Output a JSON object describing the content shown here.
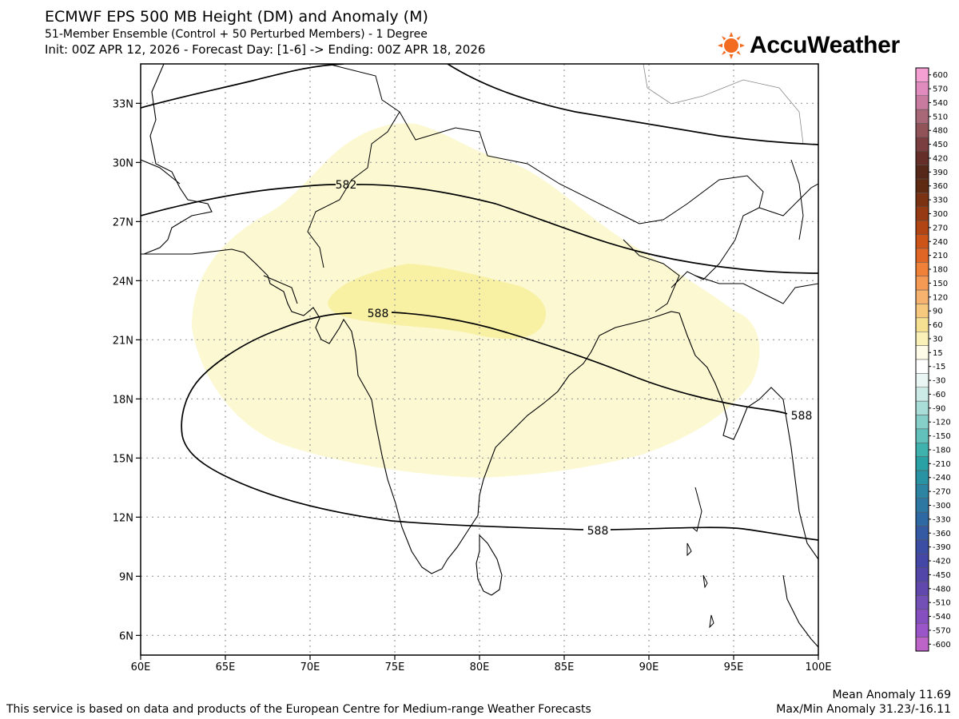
{
  "header": {
    "title": "ECMWF EPS 500 MB Height (DM) and Anomaly (M)",
    "subtitle": "51-Member Ensemble (Control + 50 Perturbed Members) - 1 Degree",
    "init_line": "Init: 00Z APR 12, 2026 - Forecast Day: [1-6] -> Ending: 00Z APR 18, 2026"
  },
  "logo": {
    "text": "AccuWeather",
    "icon": "sun-icon",
    "color": "#f26b21"
  },
  "map": {
    "lon_range": [
      60,
      100
    ],
    "lat_range": [
      5,
      35
    ],
    "lon_ticks": [
      "60E",
      "65E",
      "70E",
      "75E",
      "80E",
      "85E",
      "90E",
      "95E",
      "100E"
    ],
    "lat_ticks": [
      "33N",
      "30N",
      "27N",
      "24N",
      "21N",
      "18N",
      "15N",
      "12N",
      "9N",
      "6N"
    ],
    "grid": "dotted",
    "contour_labels": [
      "582",
      "588",
      "588",
      "588"
    ],
    "anomaly_fill_colors": {
      "15_to_30": "#fbf8d2",
      "30_to_60": "#f8f1a4"
    }
  },
  "colorbar": {
    "labels": [
      "600",
      "570",
      "540",
      "510",
      "480",
      "450",
      "420",
      "390",
      "360",
      "330",
      "300",
      "270",
      "240",
      "210",
      "180",
      "150",
      "120",
      "90",
      "60",
      "30",
      "15",
      "-15",
      "-30",
      "-60",
      "-90",
      "-120",
      "-150",
      "-180",
      "-210",
      "-240",
      "-270",
      "-300",
      "-330",
      "-360",
      "-390",
      "-420",
      "-450",
      "-480",
      "-510",
      "-540",
      "-570",
      "-600"
    ],
    "colors": [
      "#f4a0d2",
      "#e08cbe",
      "#c97a9f",
      "#a86878",
      "#915258",
      "#7a3e40",
      "#652e28",
      "#56281a",
      "#5e2a12",
      "#7a3212",
      "#953a12",
      "#b24514",
      "#cc5418",
      "#e06625",
      "#ef8238",
      "#f49a55",
      "#f6b26f",
      "#f7c97f",
      "#f6e092",
      "#f9f1b8",
      "#fefce8",
      "#ffffff",
      "#e9f6f3",
      "#cdebe6",
      "#a9ddd7",
      "#86cfc9",
      "#63c1bb",
      "#3fb2ae",
      "#2aa2a5",
      "#2a93a3",
      "#2c84a2",
      "#2d77a3",
      "#2e69a3",
      "#335aa3",
      "#3b4ea3",
      "#4547a6",
      "#5246a9",
      "#6148ad",
      "#7250b6",
      "#854fbf",
      "#9a56c8",
      "#bd64c8"
    ]
  },
  "footer": {
    "disclaimer": "This service is based on data and products of the European Centre for Medium-range Weather Forecasts",
    "mean_anomaly": "Mean Anomaly 11.69",
    "maxmin_anomaly": "Max/Min Anomaly 31.23/-16.11"
  }
}
